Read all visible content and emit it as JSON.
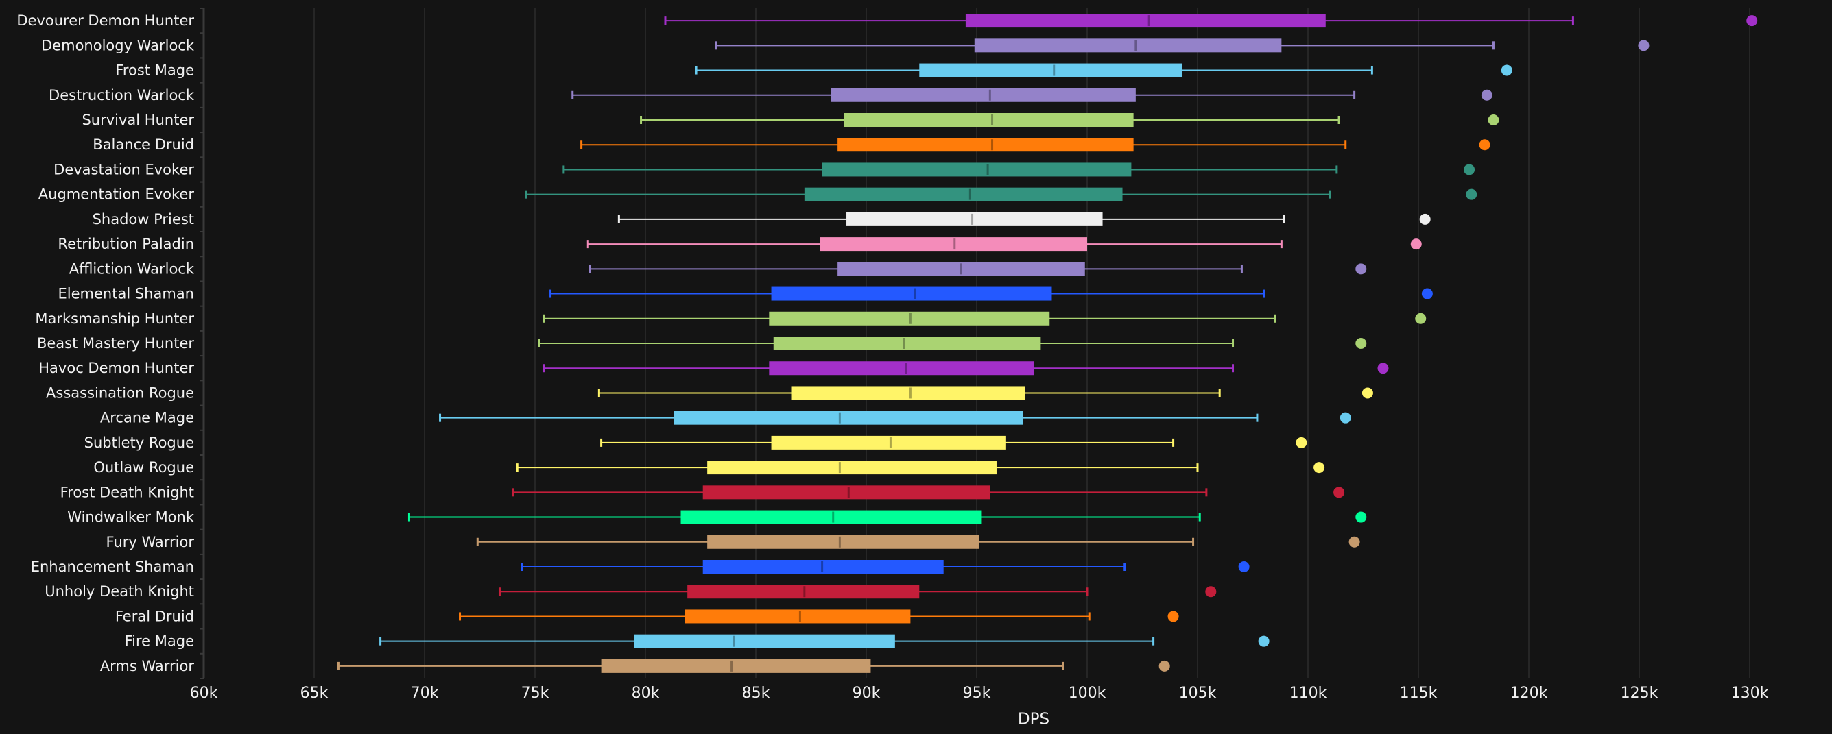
{
  "chart_data": {
    "type": "boxplot",
    "orientation": "horizontal",
    "title": "",
    "xlabel": "DPS",
    "ylabel": "",
    "xlim": [
      60000,
      130000
    ],
    "x_ticks": [
      60000,
      65000,
      70000,
      75000,
      80000,
      85000,
      90000,
      95000,
      100000,
      105000,
      110000,
      115000,
      120000,
      125000,
      130000
    ],
    "x_tick_labels": [
      "60k",
      "65k",
      "70k",
      "75k",
      "80k",
      "85k",
      "90k",
      "95k",
      "100k",
      "105k",
      "110k",
      "115k",
      "120k",
      "125k",
      "130k"
    ],
    "grid": "vertical",
    "legend": "none",
    "series": [
      {
        "name": "Devourer Demon Hunter",
        "color": "#A330C9",
        "min": 80900,
        "q1": 94500,
        "median": 102800,
        "q3": 110800,
        "max": 122000,
        "outlier": 130100
      },
      {
        "name": "Demonology Warlock",
        "color": "#9482C9",
        "min": 83200,
        "q1": 94900,
        "median": 102200,
        "q3": 108800,
        "max": 118400,
        "outlier": 125200
      },
      {
        "name": "Frost Mage",
        "color": "#69CCF0",
        "min": 82300,
        "q1": 92400,
        "median": 98500,
        "q3": 104300,
        "max": 112900,
        "outlier": 119000
      },
      {
        "name": "Destruction Warlock",
        "color": "#9482C9",
        "min": 76700,
        "q1": 88400,
        "median": 95600,
        "q3": 102200,
        "max": 112100,
        "outlier": 118100
      },
      {
        "name": "Survival Hunter",
        "color": "#AAD372",
        "min": 79800,
        "q1": 89000,
        "median": 95700,
        "q3": 102100,
        "max": 111400,
        "outlier": 118400
      },
      {
        "name": "Balance Druid",
        "color": "#FF7C0A",
        "min": 77100,
        "q1": 88700,
        "median": 95700,
        "q3": 102100,
        "max": 111700,
        "outlier": 118000
      },
      {
        "name": "Devastation Evoker",
        "color": "#33937F",
        "min": 76300,
        "q1": 88000,
        "median": 95500,
        "q3": 102000,
        "max": 111300,
        "outlier": 117300
      },
      {
        "name": "Augmentation Evoker",
        "color": "#33937F",
        "min": 74600,
        "q1": 87200,
        "median": 94700,
        "q3": 101600,
        "max": 111000,
        "outlier": 117400
      },
      {
        "name": "Shadow Priest",
        "color": "#EFEFEF",
        "min": 78800,
        "q1": 89100,
        "median": 94800,
        "q3": 100700,
        "max": 108900,
        "outlier": 115300
      },
      {
        "name": "Retribution Paladin",
        "color": "#F48CBA",
        "min": 77400,
        "q1": 87900,
        "median": 94000,
        "q3": 100000,
        "max": 108800,
        "outlier": 114900
      },
      {
        "name": "Affliction Warlock",
        "color": "#9482C9",
        "min": 77500,
        "q1": 88700,
        "median": 94300,
        "q3": 99900,
        "max": 107000,
        "outlier": 112400
      },
      {
        "name": "Elemental Shaman",
        "color": "#2459FF",
        "min": 75700,
        "q1": 85700,
        "median": 92200,
        "q3": 98400,
        "max": 108000,
        "outlier": 115400
      },
      {
        "name": "Marksmanship Hunter",
        "color": "#AAD372",
        "min": 75400,
        "q1": 85600,
        "median": 92000,
        "q3": 98300,
        "max": 108500,
        "outlier": 115100
      },
      {
        "name": "Beast Mastery Hunter",
        "color": "#AAD372",
        "min": 75200,
        "q1": 85800,
        "median": 91700,
        "q3": 97900,
        "max": 106600,
        "outlier": 112400
      },
      {
        "name": "Havoc Demon Hunter",
        "color": "#A330C9",
        "min": 75400,
        "q1": 85600,
        "median": 91800,
        "q3": 97600,
        "max": 106600,
        "outlier": 113400
      },
      {
        "name": "Assassination Rogue",
        "color": "#FFF468",
        "min": 77900,
        "q1": 86600,
        "median": 92000,
        "q3": 97200,
        "max": 106000,
        "outlier": 112700
      },
      {
        "name": "Arcane Mage",
        "color": "#69CCF0",
        "min": 70700,
        "q1": 81300,
        "median": 88800,
        "q3": 97100,
        "max": 107700,
        "outlier": 111700
      },
      {
        "name": "Subtlety Rogue",
        "color": "#FFF468",
        "min": 78000,
        "q1": 85700,
        "median": 91100,
        "q3": 96300,
        "max": 103900,
        "outlier": 109700
      },
      {
        "name": "Outlaw Rogue",
        "color": "#FFF468",
        "min": 74200,
        "q1": 82800,
        "median": 88800,
        "q3": 95900,
        "max": 105000,
        "outlier": 110500
      },
      {
        "name": "Frost Death Knight",
        "color": "#C41E3A",
        "min": 74000,
        "q1": 82600,
        "median": 89200,
        "q3": 95600,
        "max": 105400,
        "outlier": 111400
      },
      {
        "name": "Windwalker Monk",
        "color": "#00FF98",
        "min": 69300,
        "q1": 81600,
        "median": 88500,
        "q3": 95200,
        "max": 105100,
        "outlier": 112400
      },
      {
        "name": "Fury Warrior",
        "color": "#C69B6D",
        "min": 72400,
        "q1": 82800,
        "median": 88800,
        "q3": 95100,
        "max": 104800,
        "outlier": 112100
      },
      {
        "name": "Enhancement Shaman",
        "color": "#2459FF",
        "min": 74400,
        "q1": 82600,
        "median": 88000,
        "q3": 93500,
        "max": 101700,
        "outlier": 107100
      },
      {
        "name": "Unholy Death Knight",
        "color": "#C41E3A",
        "min": 73400,
        "q1": 81900,
        "median": 87200,
        "q3": 92400,
        "max": 100000,
        "outlier": 105600
      },
      {
        "name": "Feral Druid",
        "color": "#FF7C0A",
        "min": 71600,
        "q1": 81800,
        "median": 87000,
        "q3": 92000,
        "max": 100100,
        "outlier": 103900
      },
      {
        "name": "Fire Mage",
        "color": "#69CCF0",
        "min": 68000,
        "q1": 79500,
        "median": 84000,
        "q3": 91300,
        "max": 103000,
        "outlier": 108000
      },
      {
        "name": "Arms Warrior",
        "color": "#C69B6D",
        "min": 66100,
        "q1": 78000,
        "median": 83900,
        "q3": 90200,
        "max": 98900,
        "outlier": 103500
      }
    ]
  }
}
